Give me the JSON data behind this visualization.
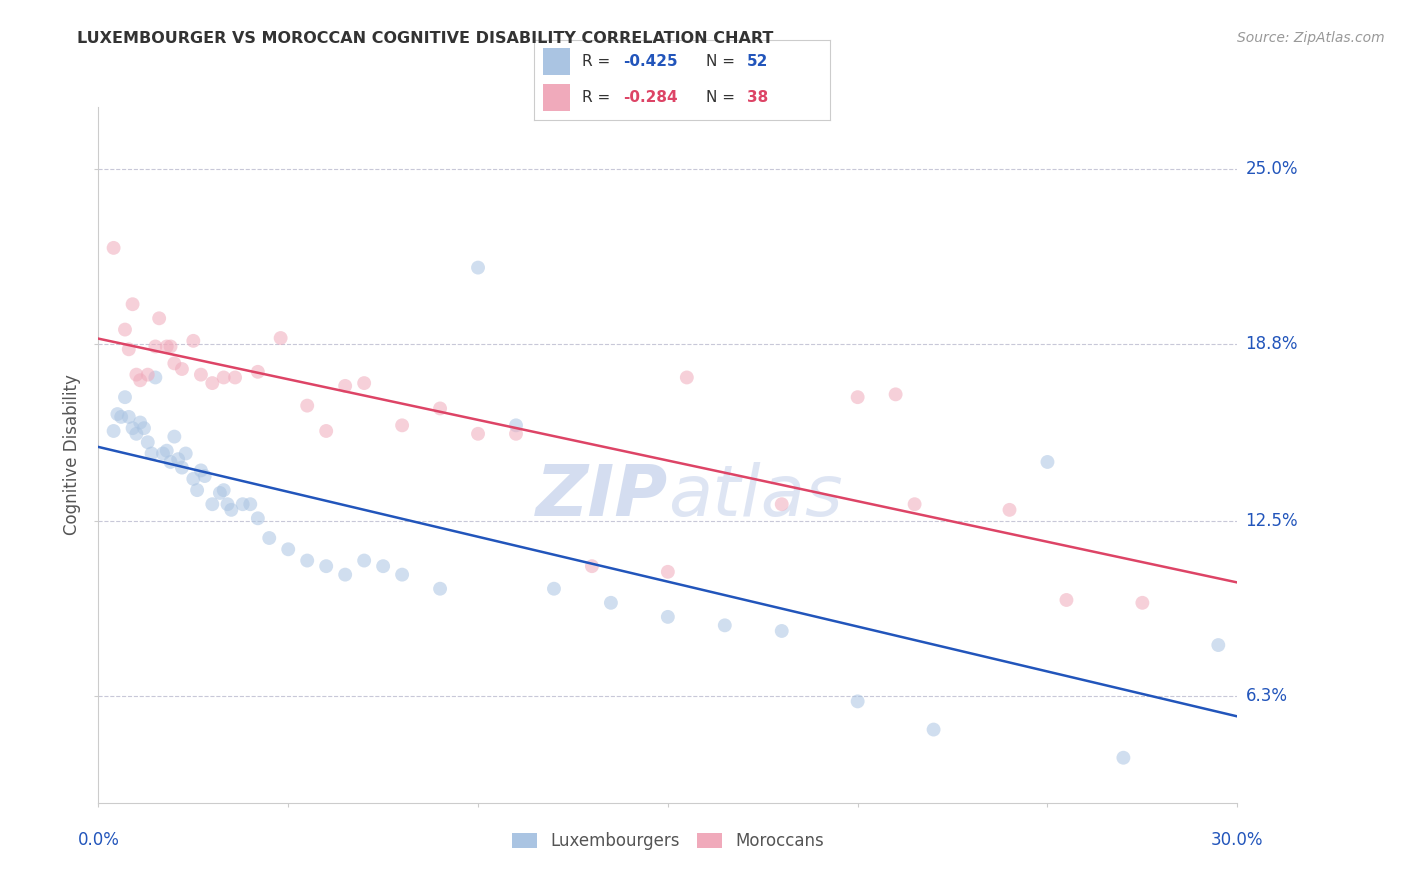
{
  "title": "LUXEMBOURGER VS MOROCCAN COGNITIVE DISABILITY CORRELATION CHART",
  "source": "Source: ZipAtlas.com",
  "ylabel": "Cognitive Disability",
  "ytick_labels": [
    "6.3%",
    "12.5%",
    "18.8%",
    "25.0%"
  ],
  "ytick_values": [
    0.063,
    0.125,
    0.188,
    0.25
  ],
  "xmin": 0.0,
  "xmax": 0.3,
  "ymin": 0.025,
  "ymax": 0.272,
  "legend_blue_r": "-0.425",
  "legend_blue_n": "52",
  "legend_pink_r": "-0.284",
  "legend_pink_n": "38",
  "legend_label_blue": "Luxembourgers",
  "legend_label_pink": "Moroccans",
  "blue_color": "#aac4e2",
  "pink_color": "#f0aabb",
  "blue_line_color": "#2255bb",
  "pink_line_color": "#dd4466",
  "watermark_color": "#cdd8ee",
  "grid_color": "#c8c8d8",
  "blue_x": [
    0.004,
    0.005,
    0.006,
    0.007,
    0.008,
    0.009,
    0.01,
    0.011,
    0.012,
    0.013,
    0.014,
    0.015,
    0.017,
    0.018,
    0.019,
    0.02,
    0.021,
    0.022,
    0.023,
    0.025,
    0.026,
    0.027,
    0.028,
    0.03,
    0.032,
    0.033,
    0.034,
    0.035,
    0.038,
    0.04,
    0.042,
    0.045,
    0.05,
    0.055,
    0.06,
    0.065,
    0.07,
    0.075,
    0.08,
    0.09,
    0.1,
    0.11,
    0.12,
    0.135,
    0.15,
    0.165,
    0.18,
    0.2,
    0.22,
    0.25,
    0.27,
    0.295
  ],
  "blue_y": [
    0.157,
    0.163,
    0.162,
    0.169,
    0.162,
    0.158,
    0.156,
    0.16,
    0.158,
    0.153,
    0.149,
    0.176,
    0.149,
    0.15,
    0.146,
    0.155,
    0.147,
    0.144,
    0.149,
    0.14,
    0.136,
    0.143,
    0.141,
    0.131,
    0.135,
    0.136,
    0.131,
    0.129,
    0.131,
    0.131,
    0.126,
    0.119,
    0.115,
    0.111,
    0.109,
    0.106,
    0.111,
    0.109,
    0.106,
    0.101,
    0.215,
    0.159,
    0.101,
    0.096,
    0.091,
    0.088,
    0.086,
    0.061,
    0.051,
    0.146,
    0.041,
    0.081
  ],
  "pink_x": [
    0.004,
    0.007,
    0.008,
    0.009,
    0.01,
    0.011,
    0.013,
    0.015,
    0.016,
    0.018,
    0.019,
    0.02,
    0.022,
    0.025,
    0.027,
    0.03,
    0.033,
    0.036,
    0.042,
    0.048,
    0.055,
    0.06,
    0.065,
    0.07,
    0.08,
    0.09,
    0.1,
    0.11,
    0.13,
    0.15,
    0.155,
    0.18,
    0.2,
    0.21,
    0.215,
    0.24,
    0.255,
    0.275
  ],
  "pink_y": [
    0.222,
    0.193,
    0.186,
    0.202,
    0.177,
    0.175,
    0.177,
    0.187,
    0.197,
    0.187,
    0.187,
    0.181,
    0.179,
    0.189,
    0.177,
    0.174,
    0.176,
    0.176,
    0.178,
    0.19,
    0.166,
    0.157,
    0.173,
    0.174,
    0.159,
    0.165,
    0.156,
    0.156,
    0.109,
    0.107,
    0.176,
    0.131,
    0.169,
    0.17,
    0.131,
    0.129,
    0.097,
    0.096
  ],
  "scatter_size": 100,
  "scatter_alpha": 0.55
}
